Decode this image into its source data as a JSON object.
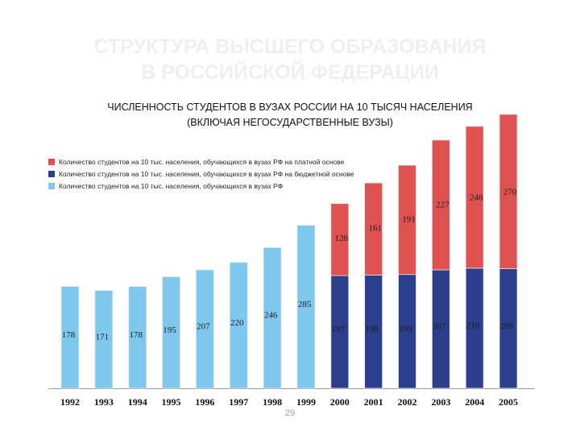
{
  "slide": {
    "title_line1": "СТРУКТУРА ВЫСШЕГО ОБРАЗОВАНИЯ",
    "title_line2": "В РОССИЙСКОЙ ФЕДЕРАЦИИ",
    "page_number": "29"
  },
  "chart_data": {
    "type": "bar",
    "stacked": true,
    "title_line1": "ЧИСЛЕННОСТЬ СТУДЕНТОВ В ВУЗАХ РОССИИ НА 10 ТЫСЯЧ НАСЕЛЕНИЯ",
    "title_line2": "(ВКЛЮЧАЯ НЕГОСУДАРСТВЕННЫЕ ВУЗЫ)",
    "categories": [
      "1992",
      "1993",
      "1994",
      "1995",
      "1996",
      "1997",
      "1998",
      "1999",
      "2000",
      "2001",
      "2002",
      "2003",
      "2004",
      "2005"
    ],
    "series": [
      {
        "name": "Количество студентов на 10 тыс. населения, обучающихся в вузах РФ",
        "color": "#7ec8ee",
        "values": [
          178,
          171,
          178,
          195,
          207,
          220,
          246,
          285,
          null,
          null,
          null,
          null,
          null,
          null
        ]
      },
      {
        "name": "Количество студентов на 10 тыс. населения, обучающихся в вузах РФ на бюджетной основе",
        "color": "#2b3f8c",
        "values": [
          null,
          null,
          null,
          null,
          null,
          null,
          null,
          null,
          197,
          198,
          199,
          207,
          210,
          209
        ]
      },
      {
        "name": "Количество студентов на 10 тыс. населения, обучающихся в вузах РФ на платной основе",
        "color": "#e05252",
        "values": [
          null,
          null,
          null,
          null,
          null,
          null,
          null,
          null,
          126,
          161,
          191,
          227,
          248,
          270
        ]
      }
    ],
    "legend_order": [
      2,
      1,
      0
    ],
    "legend_position": "top-left",
    "ylim": [
      0,
      500
    ],
    "grid": false
  }
}
